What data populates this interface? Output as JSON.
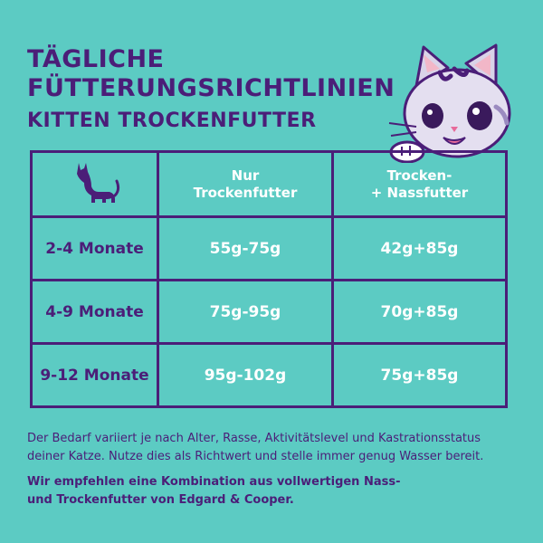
{
  "title": {
    "line1": "TÄGLICHE",
    "line2": "FÜTTERUNGSRICHTLINIEN",
    "subtitle": "KITTEN TROCKENFUTTER"
  },
  "table": {
    "header": {
      "icon": "cat-silhouette-icon",
      "col1_line1": "Nur",
      "col1_line2": "Trockenfutter",
      "col2_line1": "Trocken-",
      "col2_line2": "+ Nassfutter"
    },
    "rows": [
      {
        "age": "2-4 Monate",
        "dry": "55g-75g",
        "mixed": "42g+85g"
      },
      {
        "age": "4-9 Monate",
        "dry": "75g-95g",
        "mixed": "70g+85g"
      },
      {
        "age": "9-12 Monate",
        "dry": "95g-102g",
        "mixed": "75g+85g"
      }
    ]
  },
  "footnote": {
    "line1": "Der Bedarf variiert je nach Alter, Rasse, Aktivitätslevel und Kastrationsstatus",
    "line2": "deiner Katze. Nutze dies als Richtwert und stelle immer genug Wasser bereit."
  },
  "recommendation": {
    "line1": "Wir empfehlen eine Kombination aus vollwertigen Nass-",
    "line2": "und Trockenfutter von Edgard & Cooper."
  },
  "colors": {
    "background": "#5ccbc3",
    "accent": "#4b1e78",
    "text_light": "#ffffff"
  }
}
